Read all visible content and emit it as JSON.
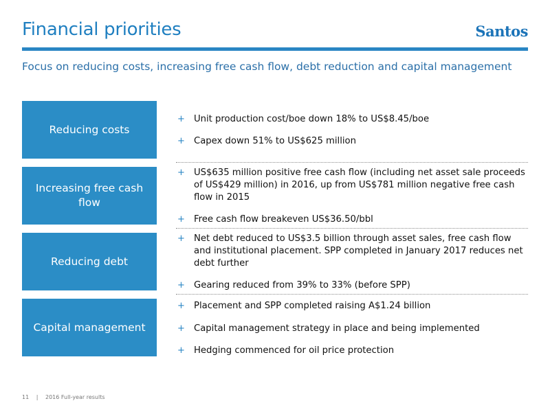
{
  "header": {
    "title": "Financial priorities",
    "logo": "Santos",
    "subtitle": "Focus on reducing costs, increasing free cash flow, debt reduction and capital management"
  },
  "rows": [
    {
      "label": "Reducing costs",
      "bullets": [
        "Unit production cost/boe down 18% to US$8.45/boe",
        "Capex down 51% to US$625 million"
      ]
    },
    {
      "label": "Increasing free cash flow",
      "bullets": [
        "US$635 million positive free cash flow (including net asset sale proceeds of US$429 million) in 2016, up from US$781 million negative free cash flow in 2015",
        "Free cash flow breakeven US$36.50/bbl"
      ]
    },
    {
      "label": "Reducing debt",
      "bullets": [
        "Net debt reduced to US$3.5 billion through asset sales, free cash flow and institutional placement.  SPP completed in January 2017 reduces net debt further",
        "Gearing reduced from 39% to 33% (before SPP)"
      ]
    },
    {
      "label": "Capital management",
      "bullets": [
        "Placement and SPP completed raising A$1.24 billion",
        "Capital management strategy in place and being implemented",
        "Hedging commenced for oil price protection"
      ]
    }
  ],
  "bullet_glyph": "+",
  "footer": {
    "page_number": "11",
    "separator": "|",
    "label": "2016 Full-year results"
  },
  "colors": {
    "accent": "#2a86c4",
    "box": "#2b8dc6",
    "title": "#1f7fc0"
  }
}
